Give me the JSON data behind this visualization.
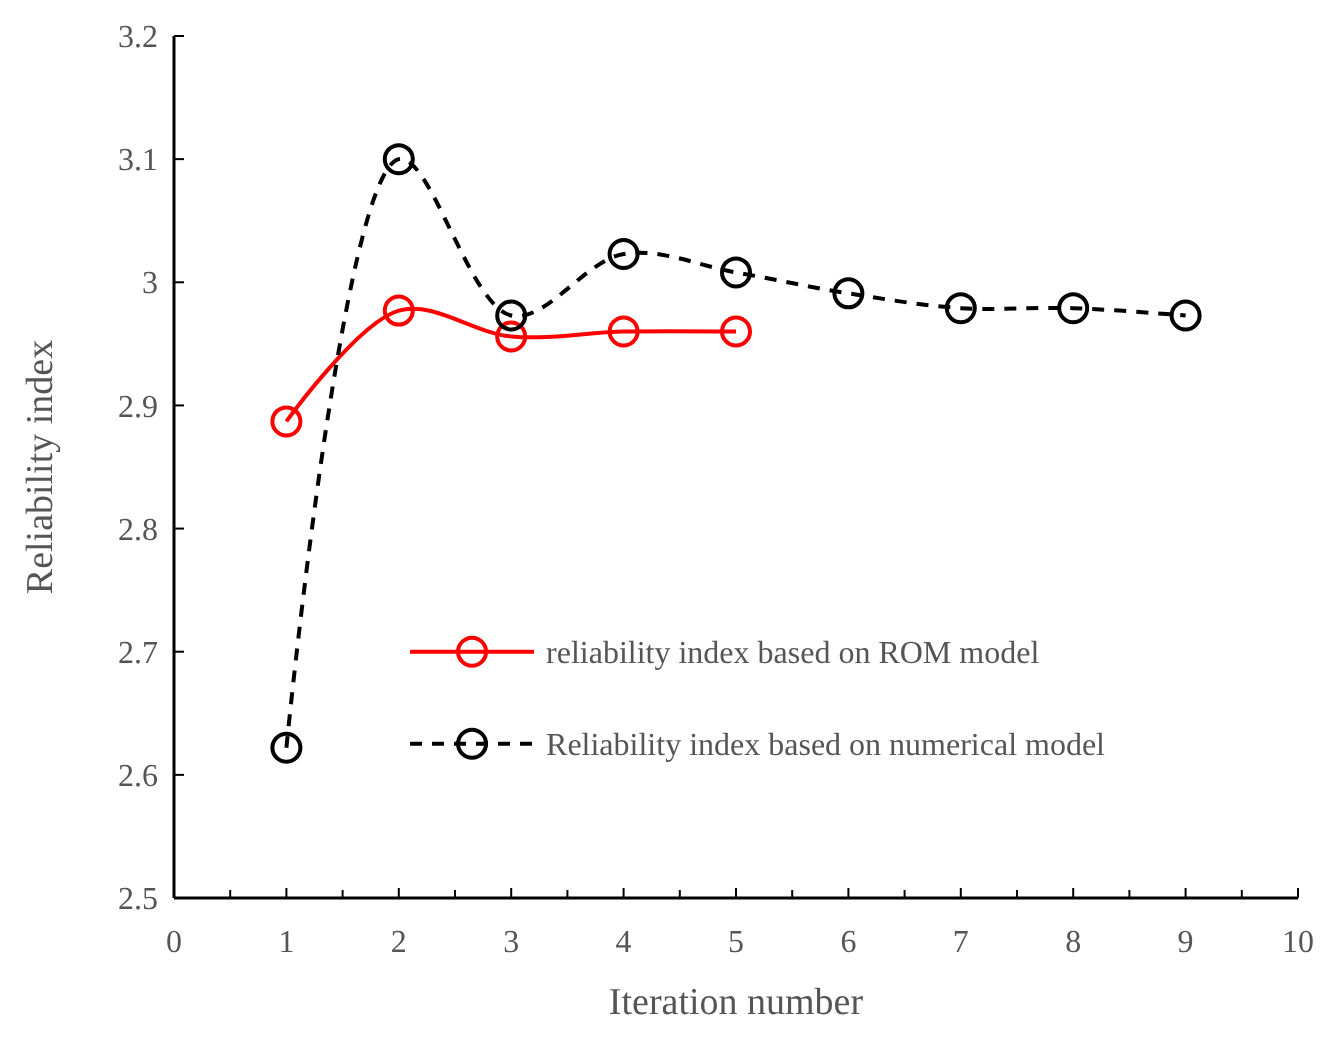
{
  "chart_data": {
    "type": "line",
    "xlabel": "Iteration number",
    "ylabel": "Reliability index",
    "xlim": [
      0,
      10
    ],
    "xticks": [
      0,
      1,
      2,
      3,
      4,
      5,
      6,
      7,
      8,
      9,
      10
    ],
    "ylim": [
      2.5,
      3.2
    ],
    "yticks": [
      2.5,
      2.6,
      2.7,
      2.8,
      2.9,
      3,
      3.1,
      3.2
    ],
    "grid": false,
    "legend": "bottom right",
    "marker": "circle",
    "series": [
      {
        "name": "reliability index based on ROM model",
        "color": "#ff0000",
        "line_style": "solid",
        "x": [
          1,
          2,
          3,
          4,
          5
        ],
        "values": [
          2.887,
          2.977,
          2.956,
          2.96,
          2.96
        ]
      },
      {
        "name": "Reliability index based on numerical model",
        "color": "#000000",
        "line_style": "dashed",
        "x": [
          1,
          2,
          3,
          4,
          5,
          6,
          7,
          8,
          9
        ],
        "values": [
          2.622,
          3.1,
          2.973,
          3.023,
          3.008,
          2.991,
          2.979,
          2.979,
          2.973
        ]
      }
    ]
  }
}
